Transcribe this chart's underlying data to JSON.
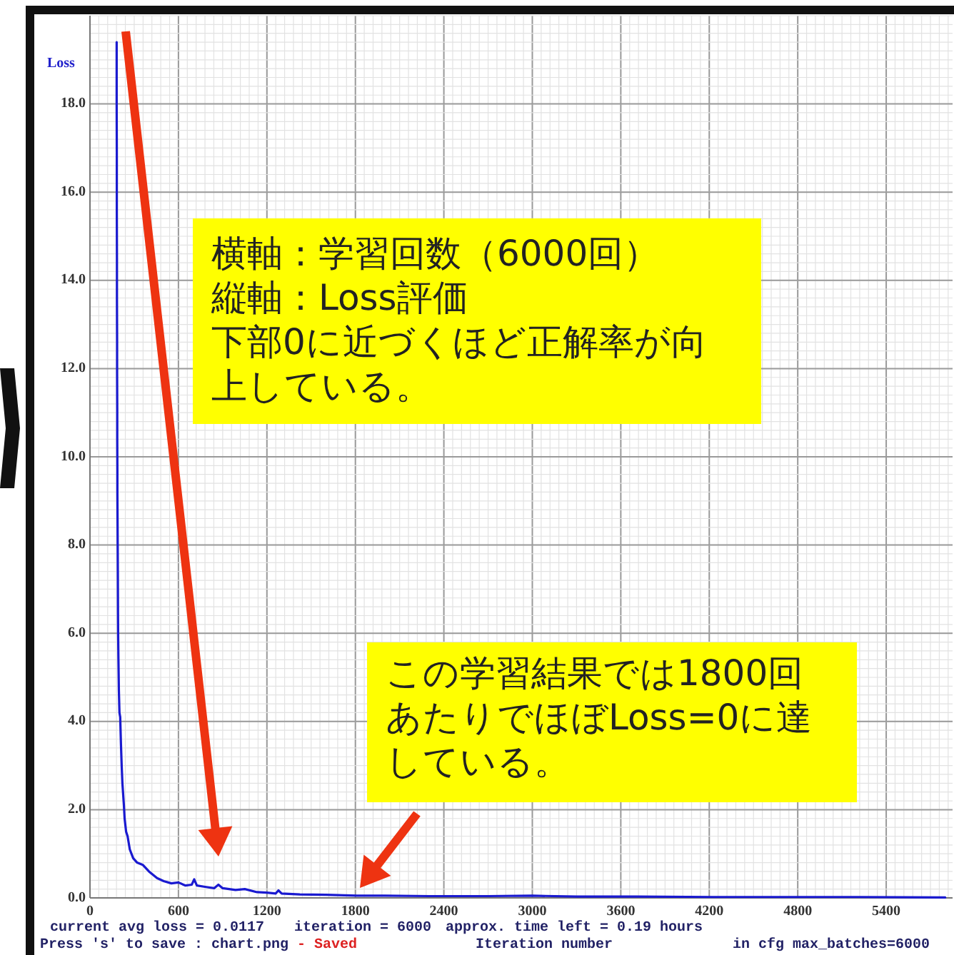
{
  "chart_data": {
    "type": "line",
    "xlabel": "Iteration number",
    "ylabel": "Loss",
    "x": [
      181,
      181,
      182,
      182,
      183,
      183,
      184,
      184,
      185,
      185,
      186,
      186,
      187,
      188,
      189,
      190,
      191,
      193,
      196,
      200,
      205,
      210,
      215,
      220,
      230,
      235,
      245,
      255,
      270,
      293,
      320,
      358,
      400,
      455,
      500,
      552,
      600,
      648,
      690,
      707,
      725,
      780,
      842,
      871,
      900,
      987,
      1050,
      1133,
      1200,
      1260,
      1278,
      1300,
      1423,
      1600,
      1810,
      2000,
      2300,
      2700,
      3000,
      3300,
      3700,
      4230,
      4800,
      5200,
      5800
    ],
    "series": [
      {
        "color": "#1a1ad0",
        "values": [
          19.4,
          18.0,
          16.9,
          15.6,
          14.5,
          13.6,
          12.6,
          11.9,
          11.1,
          10.4,
          9.7,
          9.2,
          8.6,
          8.0,
          7.4,
          6.5,
          6.0,
          5.4,
          4.7,
          4.2,
          4.1,
          3.5,
          3.0,
          2.6,
          2.1,
          1.8,
          1.5,
          1.4,
          1.1,
          0.9,
          0.8,
          0.75,
          0.6,
          0.45,
          0.38,
          0.33,
          0.35,
          0.28,
          0.3,
          0.42,
          0.28,
          0.25,
          0.22,
          0.3,
          0.22,
          0.18,
          0.2,
          0.13,
          0.12,
          0.1,
          0.17,
          0.1,
          0.08,
          0.07,
          0.05,
          0.05,
          0.04,
          0.04,
          0.05,
          0.03,
          0.03,
          0.02,
          0.02,
          0.02,
          0.01
        ]
      }
    ],
    "xlim": [
      0,
      5850
    ],
    "ylim": [
      0,
      20
    ],
    "xticks": [
      0,
      600,
      1200,
      1800,
      2400,
      3000,
      3600,
      4200,
      4800,
      5400
    ],
    "yticks": [
      {
        "value": 0,
        "label": "0.0"
      },
      {
        "value": 2,
        "label": "2.0"
      },
      {
        "value": 4,
        "label": "4.0"
      },
      {
        "value": 6,
        "label": "6.0"
      },
      {
        "value": 8,
        "label": "8.0"
      },
      {
        "value": 10,
        "label": "10.0"
      },
      {
        "value": 12,
        "label": "12.0"
      },
      {
        "value": 14,
        "label": "14.0"
      },
      {
        "value": 16,
        "label": "16.0"
      },
      {
        "value": 18,
        "label": "18.0"
      }
    ],
    "grid": true,
    "annotations": [
      "横軸：学習回数（6000回）",
      "縦軸：Loss評価",
      "下部0に近づくほど正解率が向上している。",
      "この学習結果では1800回あたりでほぼLoss=0に達している。",
      "current avg loss = 0.0117",
      "iteration = 6000",
      "approx. time left = 0.19 hours",
      "Press 's' to save : chart.png",
      "- Saved",
      "in cfg max_batches=6000"
    ]
  }
}
